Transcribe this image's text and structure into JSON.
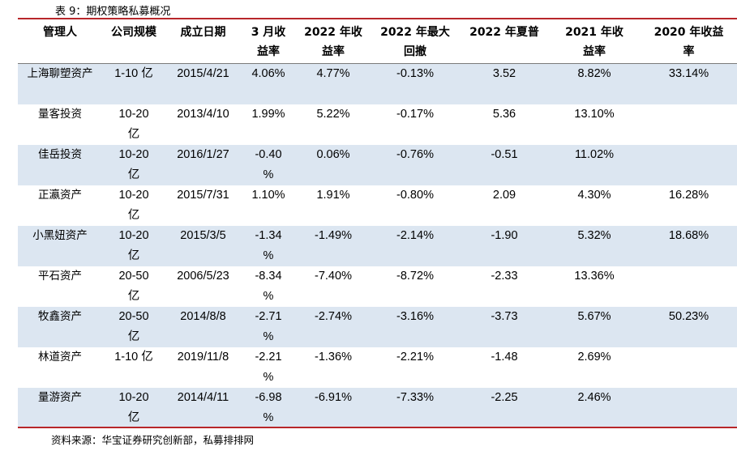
{
  "caption": "表 9：期权策略私募概况",
  "headers": [
    "管理人",
    "公司规模",
    "成立日期",
    "3 月收益率",
    "2022 年收益率",
    "2022 年最大回撤",
    "2022 年夏普",
    "2021 年收益率",
    "2020 年收益率"
  ],
  "rows": [
    [
      "上海聊塑资产",
      "1-10 亿",
      "2015/4/21",
      "4.06%",
      "4.77%",
      "-0.13%",
      "3.52",
      "8.82%",
      "33.14%"
    ],
    [
      "量客投资",
      "10-20 亿",
      "2013/4/10",
      "1.99%",
      "5.22%",
      "-0.17%",
      "5.36",
      "13.10%",
      ""
    ],
    [
      "佳岳投资",
      "10-20 亿",
      "2016/1/27",
      "-0.40 %",
      "0.06%",
      "-0.76%",
      "-0.51",
      "11.02%",
      ""
    ],
    [
      "正瀛资产",
      "10-20 亿",
      "2015/7/31",
      "1.10%",
      "1.91%",
      "-0.80%",
      "2.09",
      "4.30%",
      "16.28%"
    ],
    [
      "小黑妞资产",
      "10-20 亿",
      "2015/3/5",
      "-1.34 %",
      "-1.49%",
      "-2.14%",
      "-1.90",
      "5.32%",
      "18.68%"
    ],
    [
      "平石资产",
      "20-50 亿",
      "2006/5/23",
      "-8.34 %",
      "-7.40%",
      "-8.72%",
      "-2.33",
      "13.36%",
      ""
    ],
    [
      "牧鑫资产",
      "20-50 亿",
      "2014/8/8",
      "-2.71 %",
      "-2.74%",
      "-3.16%",
      "-3.73",
      "5.67%",
      "50.23%"
    ],
    [
      "林道资产",
      "1-10 亿",
      "2019/11/8",
      "-2.21 %",
      "-1.36%",
      "-2.21%",
      "-1.48",
      "2.69%",
      ""
    ],
    [
      "量游资产",
      "10-20 亿",
      "2014/4/11",
      "-6.98 %",
      "-6.91%",
      "-7.33%",
      "-2.25",
      "2.46%",
      ""
    ]
  ],
  "source": "资料来源：华宝证券研究创新部，私募排排网",
  "colors": {
    "rule": "#b8262a",
    "row_shade": "#dce6f1",
    "header_line": "#7a7a7a"
  }
}
